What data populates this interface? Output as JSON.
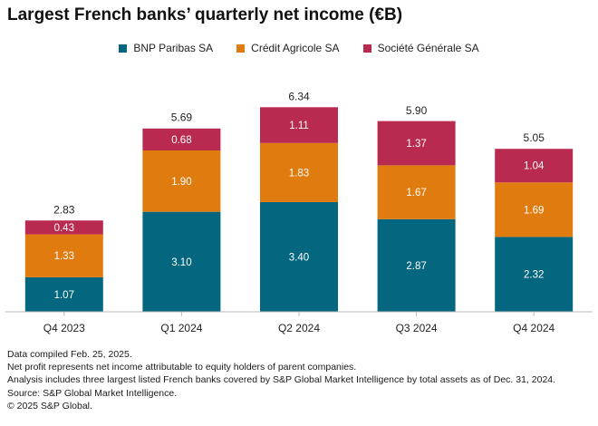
{
  "title": "Largest French banks’ quarterly net income (€B)",
  "colors": {
    "bnp": "#05667f",
    "credit_agricole": "#e07b10",
    "societe_generale": "#b92a50",
    "axis": "#bbbbbb",
    "label_light": "#ffffff",
    "label_dark": "#222222"
  },
  "chart_data": {
    "type": "bar",
    "stacked": true,
    "title": "Largest French banks’ quarterly net income (€B)",
    "categories": [
      "Q4 2023",
      "Q1 2024",
      "Q2 2024",
      "Q3 2024",
      "Q4 2024"
    ],
    "series": [
      {
        "name": "BNP Paribas SA",
        "color": "#05667f",
        "values": [
          1.07,
          3.1,
          3.4,
          2.87,
          2.32
        ],
        "labels": [
          "1.07",
          "3.10",
          "3.40",
          "2.87",
          "2.32"
        ]
      },
      {
        "name": "Crédit Agricole SA",
        "color": "#e07b10",
        "values": [
          1.33,
          1.9,
          1.83,
          1.67,
          1.69
        ],
        "labels": [
          "1.33",
          "1.90",
          "1.83",
          "1.67",
          "1.69"
        ]
      },
      {
        "name": "Société Générale SA",
        "color": "#b92a50",
        "values": [
          0.43,
          0.68,
          1.11,
          1.37,
          1.04
        ],
        "labels": [
          "0.43",
          "0.68",
          "1.11",
          "1.37",
          "1.04"
        ]
      }
    ],
    "totals": [
      2.83,
      5.69,
      6.34,
      5.9,
      5.05
    ],
    "total_labels": [
      "2.83",
      "5.69",
      "6.34",
      "5.90",
      "5.05"
    ],
    "ylim": [
      0,
      6.8
    ],
    "grid": false,
    "legend_position": "top-center",
    "xlabel": "",
    "ylabel": ""
  },
  "footnotes": [
    "Data compiled Feb. 25, 2025.",
    "Net profit represents net income attributable to equity holders of parent companies.",
    "Analysis includes three largest listed French banks covered by S&P Global Market Intelligence by total assets as of Dec. 31, 2024.",
    "Source: S&P Global Market Intelligence.",
    "© 2025 S&P Global."
  ]
}
